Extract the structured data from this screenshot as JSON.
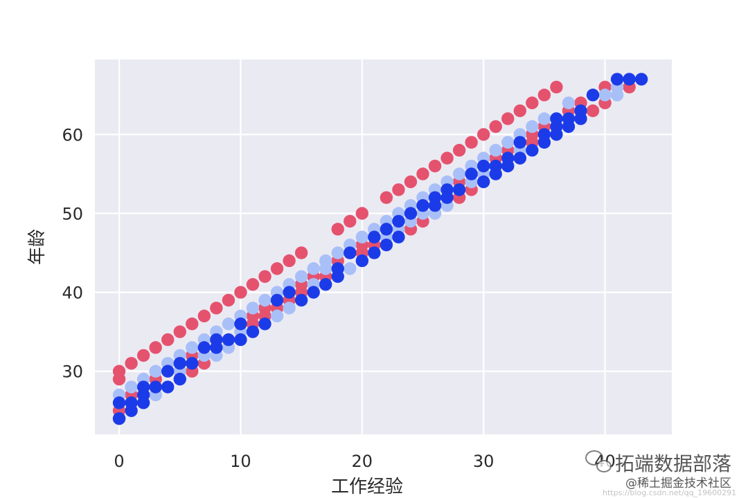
{
  "chart_data": {
    "type": "scatter",
    "title": "",
    "xlabel": "工作经验",
    "ylabel": "年龄",
    "xlim": [
      -2,
      45.5
    ],
    "ylim": [
      22,
      69.5
    ],
    "xticks": [
      0,
      10,
      20,
      30,
      40
    ],
    "yticks": [
      30,
      40,
      50,
      60
    ],
    "grid": true,
    "background_color": "#eaeaf2",
    "series": [
      {
        "color": "#e5526e",
        "points": [
          [
            0,
            30
          ],
          [
            0,
            29
          ],
          [
            0,
            25
          ],
          [
            0,
            24
          ],
          [
            1,
            31
          ],
          [
            1,
            27
          ],
          [
            2,
            32
          ],
          [
            3,
            33
          ],
          [
            3,
            29
          ],
          [
            4,
            34
          ],
          [
            5,
            35
          ],
          [
            5,
            30
          ],
          [
            6,
            36
          ],
          [
            6,
            32
          ],
          [
            6,
            30
          ],
          [
            7,
            37
          ],
          [
            7,
            31
          ],
          [
            8,
            38
          ],
          [
            9,
            39
          ],
          [
            10,
            40
          ],
          [
            11,
            41
          ],
          [
            11,
            37
          ],
          [
            11,
            36
          ],
          [
            12,
            42
          ],
          [
            12,
            38
          ],
          [
            12,
            37
          ],
          [
            13,
            43
          ],
          [
            13,
            39
          ],
          [
            13,
            38
          ],
          [
            14,
            44
          ],
          [
            14,
            39
          ],
          [
            15,
            45
          ],
          [
            15,
            41
          ],
          [
            15,
            40
          ],
          [
            16,
            42
          ],
          [
            17,
            42
          ],
          [
            18,
            48
          ],
          [
            18,
            44
          ],
          [
            19,
            49
          ],
          [
            19,
            45
          ],
          [
            20,
            50
          ],
          [
            20,
            46
          ],
          [
            20,
            45
          ],
          [
            21,
            46
          ],
          [
            22,
            52
          ],
          [
            23,
            53
          ],
          [
            24,
            54
          ],
          [
            24,
            48
          ],
          [
            25,
            55
          ],
          [
            25,
            49
          ],
          [
            26,
            56
          ],
          [
            26,
            51
          ],
          [
            27,
            57
          ],
          [
            28,
            58
          ],
          [
            28,
            52
          ],
          [
            28,
            54
          ],
          [
            29,
            59
          ],
          [
            29,
            53
          ],
          [
            30,
            60
          ],
          [
            31,
            61
          ],
          [
            31,
            57
          ],
          [
            32,
            62
          ],
          [
            32,
            58
          ],
          [
            33,
            63
          ],
          [
            33,
            57
          ],
          [
            34,
            64
          ],
          [
            34,
            60
          ],
          [
            34,
            59
          ],
          [
            35,
            65
          ],
          [
            35,
            61
          ],
          [
            36,
            66
          ],
          [
            37,
            63
          ],
          [
            38,
            64
          ],
          [
            39,
            63
          ],
          [
            40,
            66
          ],
          [
            40,
            64
          ],
          [
            42,
            66
          ]
        ]
      },
      {
        "color": "#a9bff8",
        "points": [
          [
            0,
            27
          ],
          [
            0,
            26
          ],
          [
            1,
            28
          ],
          [
            2,
            29
          ],
          [
            3,
            30
          ],
          [
            3,
            27
          ],
          [
            4,
            31
          ],
          [
            5,
            32
          ],
          [
            5,
            30
          ],
          [
            6,
            33
          ],
          [
            7,
            34
          ],
          [
            7,
            32
          ],
          [
            8,
            35
          ],
          [
            8,
            32
          ],
          [
            9,
            36
          ],
          [
            9,
            33
          ],
          [
            10,
            37
          ],
          [
            10,
            35
          ],
          [
            11,
            38
          ],
          [
            12,
            39
          ],
          [
            13,
            40
          ],
          [
            13,
            37
          ],
          [
            14,
            41
          ],
          [
            14,
            38
          ],
          [
            15,
            42
          ],
          [
            16,
            43
          ],
          [
            16,
            41
          ],
          [
            17,
            44
          ],
          [
            17,
            43
          ],
          [
            18,
            45
          ],
          [
            19,
            46
          ],
          [
            19,
            43
          ],
          [
            20,
            47
          ],
          [
            20,
            44
          ],
          [
            21,
            48
          ],
          [
            22,
            49
          ],
          [
            22,
            47
          ],
          [
            23,
            50
          ],
          [
            23,
            48
          ],
          [
            24,
            51
          ],
          [
            24,
            49
          ],
          [
            25,
            52
          ],
          [
            25,
            50
          ],
          [
            26,
            53
          ],
          [
            26,
            50
          ],
          [
            27,
            54
          ],
          [
            27,
            51
          ],
          [
            28,
            55
          ],
          [
            29,
            56
          ],
          [
            29,
            54
          ],
          [
            30,
            57
          ],
          [
            30,
            55
          ],
          [
            31,
            58
          ],
          [
            32,
            59
          ],
          [
            33,
            60
          ],
          [
            33,
            58
          ],
          [
            34,
            61
          ],
          [
            35,
            62
          ],
          [
            36,
            62
          ],
          [
            37,
            64
          ],
          [
            38,
            63
          ],
          [
            40,
            65
          ],
          [
            41,
            66
          ],
          [
            41,
            65
          ]
        ]
      },
      {
        "color": "#1c3be8",
        "points": [
          [
            0,
            26
          ],
          [
            0,
            24
          ],
          [
            1,
            26
          ],
          [
            1,
            25
          ],
          [
            2,
            28
          ],
          [
            2,
            27
          ],
          [
            2,
            26
          ],
          [
            3,
            28
          ],
          [
            4,
            30
          ],
          [
            4,
            28
          ],
          [
            5,
            31
          ],
          [
            5,
            29
          ],
          [
            6,
            31
          ],
          [
            7,
            33
          ],
          [
            8,
            34
          ],
          [
            8,
            33
          ],
          [
            9,
            34
          ],
          [
            10,
            36
          ],
          [
            10,
            34
          ],
          [
            11,
            35
          ],
          [
            12,
            36
          ],
          [
            13,
            39
          ],
          [
            14,
            40
          ],
          [
            15,
            39
          ],
          [
            16,
            40
          ],
          [
            17,
            41
          ],
          [
            18,
            43
          ],
          [
            18,
            42
          ],
          [
            19,
            45
          ],
          [
            20,
            44
          ],
          [
            21,
            47
          ],
          [
            21,
            45
          ],
          [
            22,
            48
          ],
          [
            22,
            46
          ],
          [
            23,
            49
          ],
          [
            23,
            47
          ],
          [
            24,
            50
          ],
          [
            25,
            51
          ],
          [
            26,
            52
          ],
          [
            26,
            51
          ],
          [
            27,
            53
          ],
          [
            27,
            52
          ],
          [
            28,
            53
          ],
          [
            29,
            55
          ],
          [
            30,
            56
          ],
          [
            30,
            54
          ],
          [
            31,
            56
          ],
          [
            31,
            55
          ],
          [
            32,
            57
          ],
          [
            32,
            56
          ],
          [
            33,
            59
          ],
          [
            33,
            57
          ],
          [
            34,
            58
          ],
          [
            35,
            60
          ],
          [
            35,
            59
          ],
          [
            36,
            62
          ],
          [
            36,
            61
          ],
          [
            36,
            60
          ],
          [
            37,
            62
          ],
          [
            37,
            61
          ],
          [
            38,
            63
          ],
          [
            38,
            62
          ],
          [
            39,
            65
          ],
          [
            41,
            67
          ],
          [
            42,
            67
          ],
          [
            43,
            67
          ]
        ]
      }
    ]
  },
  "watermark": {
    "main": "拓端数据部落",
    "sub": "@稀土掘金技术社区",
    "faint": "https://blog.csdn.net/qq_19600291"
  }
}
